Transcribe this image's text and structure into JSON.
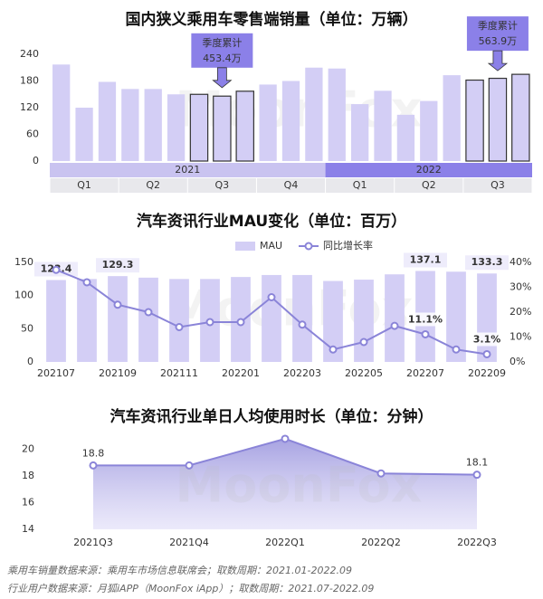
{
  "chart_data": [
    {
      "type": "bar",
      "title": "国内狭义乘用车零售端销量（单位：万辆）",
      "categories": [
        null,
        null,
        null,
        null,
        null,
        null,
        null,
        null,
        null,
        null,
        null,
        null,
        null,
        null,
        null,
        null,
        null,
        null,
        null,
        null,
        null
      ],
      "values": [
        217,
        120,
        178,
        162,
        162,
        150,
        150,
        146,
        157,
        172,
        180,
        210,
        208,
        128,
        158,
        104,
        135,
        193,
        182,
        186,
        195
      ],
      "color": "#d3cef5",
      "highlight": [
        6,
        7,
        8,
        18,
        19,
        20
      ],
      "highlight_stroke": "#333",
      "ylim": [
        0,
        240
      ],
      "yticks": [
        0,
        60,
        120,
        180,
        240
      ],
      "quarters": [
        "Q1",
        "Q2",
        "Q3",
        "Q4",
        "Q1",
        "Q2",
        "Q3"
      ],
      "years": [
        "2021",
        "2022"
      ],
      "year_colors": [
        "#c9c3f0",
        "#8b80e8"
      ],
      "year_text_colors": [
        "#222",
        "#fff"
      ],
      "annotations": [
        {
          "title": "季度累计",
          "value": 453.4,
          "label": "453.4万"
        },
        {
          "title": "季度累计",
          "value": 563.9,
          "label": "563.9万"
        }
      ],
      "annotation_color": "#8b80e8"
    },
    {
      "type": "bar-line",
      "title": "汽车资讯行业MAU变化（单位：百万）",
      "categories": [
        "202107",
        null,
        "202109",
        null,
        "202111",
        null,
        "202201",
        null,
        "202203",
        null,
        "202205",
        null,
        "202207",
        null,
        "202209"
      ],
      "series": [
        {
          "name": "MAU",
          "color": "#d3cef5",
          "values": [
            123.4,
            125,
            129.3,
            127,
            125,
            125,
            128,
            131,
            131,
            122,
            124,
            132,
            137.1,
            136,
            133.3
          ],
          "value_labels": [
            "123.4",
            null,
            "129.3",
            null,
            null,
            null,
            null,
            null,
            null,
            null,
            null,
            null,
            "137.1",
            null,
            "133.3"
          ]
        },
        {
          "name": "同比增长率",
          "color": "#8a84d8",
          "axis": "y2",
          "values": [
            37,
            32,
            23,
            20,
            14,
            16,
            16,
            26,
            15,
            5,
            8,
            14.5,
            11.1,
            5,
            3.1
          ],
          "value_labels": [
            null,
            null,
            null,
            null,
            null,
            null,
            null,
            null,
            null,
            null,
            null,
            null,
            "11.1%",
            null,
            "3.1%"
          ]
        }
      ],
      "ylim": [
        0,
        150
      ],
      "yticks": [
        0,
        50,
        100,
        150
      ],
      "y2lim": [
        0,
        40
      ],
      "y2ticks": [
        {
          "value": 0,
          "label": "0%"
        },
        {
          "value": 10,
          "label": "10%"
        },
        {
          "value": 20,
          "label": "20%"
        },
        {
          "value": 30,
          "label": "30%"
        },
        {
          "value": 40,
          "label": "40%"
        }
      ]
    },
    {
      "type": "area",
      "title": "汽车资讯行业单日人均使用时长（单位：分钟）",
      "categories": [
        "2021Q3",
        "2021Q4",
        "2022Q1",
        "2022Q2",
        "2022Q3"
      ],
      "values": [
        18.8,
        18.8,
        20.8,
        18.2,
        18.1
      ],
      "value_labels": [
        "18.8",
        null,
        null,
        null,
        "18.1"
      ],
      "color": "#8a84d8",
      "ylim": [
        14,
        21
      ],
      "yticks": [
        14,
        16,
        18,
        20
      ]
    }
  ],
  "watermark": "MoonFox",
  "notes": [
    "乘用车销量数据来源：乘用车市场信息联席会；取数周期：2021.01-2022.09",
    "行业用户数据来源：月狐iAPP（MoonFox iApp）；取数周期：2021.07-2022.09"
  ]
}
